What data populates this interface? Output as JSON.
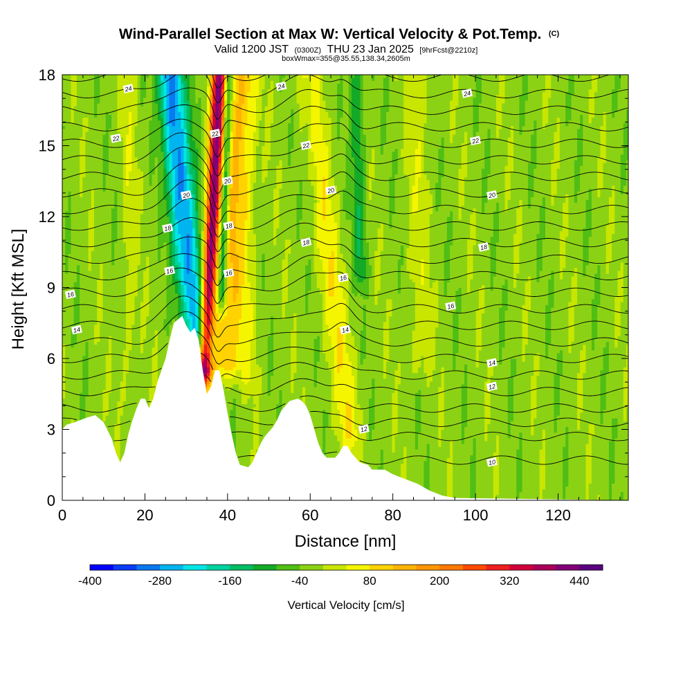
{
  "title": {
    "main": "Wind-Parallel Section at Max W: Vertical Velocity & Pot.Temp.",
    "mark": "(C)",
    "sub_valid": "Valid 1200 JST",
    "sub_utc": "(0300Z)",
    "sub_date": "THU 23 Jan 2025",
    "sub_fcst": "[9hrFcst@2210z]",
    "line3": "boxWmax=355@35.55,138.34,2605m"
  },
  "chart_data": {
    "type": "heatmap",
    "xlabel": "Distance [nm]",
    "ylabel": "Height [Kft MSL]",
    "xlim": [
      0,
      137
    ],
    "ylim": [
      0,
      18
    ],
    "x_ticks": [
      0,
      20,
      40,
      60,
      80,
      100,
      120
    ],
    "y_ticks": [
      0,
      3,
      6,
      9,
      12,
      15,
      18
    ],
    "colorbar": {
      "title": "Vertical Velocity [cm/s]",
      "range": [
        -400,
        480
      ],
      "step": 40,
      "tick_values": [
        -400,
        -280,
        -160,
        -40,
        80,
        200,
        320,
        440
      ],
      "colors": [
        "#0000ff",
        "#0a3cf5",
        "#0a78f0",
        "#00b4f0",
        "#00e6e6",
        "#00d2a0",
        "#00be64",
        "#14aa28",
        "#50be14",
        "#8cd214",
        "#c8e600",
        "#f5f500",
        "#ffd200",
        "#ffb400",
        "#ff9600",
        "#ff7800",
        "#ff4b00",
        "#f01e1e",
        "#d2003c",
        "#aa005a",
        "#820078",
        "#5a0082"
      ]
    },
    "terrain_kft": [
      [
        0,
        3.0
      ],
      [
        1,
        3.2
      ],
      [
        3,
        3.3
      ],
      [
        6,
        3.5
      ],
      [
        8,
        3.6
      ],
      [
        10,
        3.3
      ],
      [
        12,
        2.6
      ],
      [
        13,
        2.0
      ],
      [
        14,
        1.6
      ],
      [
        15,
        2.0
      ],
      [
        16,
        2.8
      ],
      [
        17,
        3.4
      ],
      [
        18,
        3.9
      ],
      [
        19,
        4.3
      ],
      [
        20,
        4.3
      ],
      [
        21,
        3.9
      ],
      [
        22,
        4.3
      ],
      [
        23,
        5.0
      ],
      [
        24,
        5.5
      ],
      [
        25,
        6.0
      ],
      [
        26,
        6.8
      ],
      [
        27,
        7.5
      ],
      [
        29,
        7.8
      ],
      [
        30,
        7.4
      ],
      [
        31,
        7.1
      ],
      [
        32,
        7.3
      ],
      [
        33,
        6.8
      ],
      [
        34,
        5.5
      ],
      [
        35,
        4.5
      ],
      [
        36,
        4.8
      ],
      [
        37,
        5.5
      ],
      [
        38,
        5.5
      ],
      [
        39,
        4.7
      ],
      [
        40,
        3.7
      ],
      [
        41,
        2.8
      ],
      [
        42,
        2.0
      ],
      [
        43,
        1.5
      ],
      [
        45,
        1.4
      ],
      [
        46,
        1.6
      ],
      [
        47,
        2.0
      ],
      [
        48,
        2.4
      ],
      [
        49,
        2.7
      ],
      [
        50,
        2.9
      ],
      [
        51,
        3.1
      ],
      [
        52,
        3.4
      ],
      [
        53,
        3.8
      ],
      [
        55,
        4.2
      ],
      [
        57,
        4.3
      ],
      [
        58,
        4.2
      ],
      [
        59,
        4.0
      ],
      [
        60,
        3.6
      ],
      [
        61,
        3.0
      ],
      [
        62,
        2.4
      ],
      [
        63,
        2.0
      ],
      [
        64,
        1.8
      ],
      [
        66,
        1.8
      ],
      [
        67,
        2.0
      ],
      [
        68,
        2.3
      ],
      [
        69,
        2.3
      ],
      [
        70,
        2.0
      ],
      [
        71,
        1.8
      ],
      [
        72,
        1.6
      ],
      [
        74,
        1.5
      ],
      [
        75,
        1.3
      ],
      [
        78,
        1.3
      ],
      [
        80,
        1.1
      ],
      [
        83,
        0.9
      ],
      [
        86,
        0.7
      ],
      [
        89,
        0.4
      ],
      [
        92,
        0.2
      ],
      [
        95,
        0.1
      ],
      [
        137,
        0.0
      ]
    ],
    "updrafts": [
      {
        "x_base": 34.2,
        "x_top": 38.0,
        "z_base": 4.7,
        "z_top": 18,
        "w": 420,
        "width": 1.7
      },
      {
        "x_base": 39.2,
        "x_top": 42.7,
        "z_base": 5.0,
        "z_top": 18,
        "w": 140,
        "width": 3.6
      },
      {
        "x_base": 45.0,
        "x_top": 45.0,
        "z_base": 4.5,
        "z_top": 18,
        "w": 40,
        "width": 2.5
      },
      {
        "x_base": 70.0,
        "x_top": 59.5,
        "z_base": 2.0,
        "z_top": 18,
        "w": 80,
        "width": 3.2
      },
      {
        "x_base": 16.5,
        "x_top": 16.0,
        "z_base": 3.5,
        "z_top": 18,
        "w": 40,
        "width": 2.0
      },
      {
        "x_base": 86.0,
        "x_top": 86.0,
        "z_base": 5.0,
        "z_top": 18,
        "w": 40,
        "width": 3.0
      }
    ],
    "downdrafts": [
      {
        "x_base": 33.0,
        "x_top": 26.5,
        "z_base": 6.0,
        "z_top": 18,
        "w": -270,
        "width": 3.0
      },
      {
        "x_base": 38.6,
        "x_top": 40.2,
        "z_base": 8.0,
        "z_top": 18,
        "w": -200,
        "width": 1.1
      },
      {
        "x_base": 72.5,
        "x_top": 71.0,
        "z_base": 9.0,
        "z_top": 18,
        "w": -90,
        "width": 1.7
      },
      {
        "x_base": 28.5,
        "x_top": 24.5,
        "z_base": 9.0,
        "z_top": 18,
        "w": -60,
        "width": 1.6
      },
      {
        "x_base": 61.0,
        "x_top": 59.0,
        "z_base": 12.0,
        "z_top": 18,
        "w": -40,
        "width": 1.5
      }
    ],
    "contours_kft": [
      1.7,
      2.7,
      3.3,
      3.9,
      4.6,
      5.3,
      6.0,
      6.7,
      7.4,
      8.1,
      8.8,
      9.5,
      10.2,
      10.9,
      11.6,
      12.3,
      13.0,
      13.7,
      14.4,
      15.1,
      15.8,
      16.5,
      17.2,
      17.9
    ],
    "contour_labels": [
      {
        "text": "24",
        "x": 16.0,
        "y": 17.4
      },
      {
        "text": "22",
        "x": 13.0,
        "y": 15.3
      },
      {
        "text": "20",
        "x": 30.0,
        "y": 12.9
      },
      {
        "text": "18",
        "x": 25.5,
        "y": 11.5
      },
      {
        "text": "16",
        "x": 26.0,
        "y": 9.7
      },
      {
        "text": "16",
        "x": 2.0,
        "y": 8.7
      },
      {
        "text": "14",
        "x": 3.5,
        "y": 7.2
      },
      {
        "text": "22",
        "x": 37.0,
        "y": 15.5
      },
      {
        "text": "20",
        "x": 40.0,
        "y": 13.5
      },
      {
        "text": "18",
        "x": 40.3,
        "y": 11.6
      },
      {
        "text": "16",
        "x": 40.3,
        "y": 9.6
      },
      {
        "text": "24",
        "x": 53.0,
        "y": 17.5
      },
      {
        "text": "22",
        "x": 59.0,
        "y": 15.0
      },
      {
        "text": "20",
        "x": 65.0,
        "y": 13.1
      },
      {
        "text": "18",
        "x": 59.0,
        "y": 10.9
      },
      {
        "text": "16",
        "x": 68.0,
        "y": 9.4
      },
      {
        "text": "14",
        "x": 68.5,
        "y": 7.2
      },
      {
        "text": "12",
        "x": 73.0,
        "y": 3.0
      },
      {
        "text": "24",
        "x": 98.0,
        "y": 17.2
      },
      {
        "text": "22",
        "x": 100.0,
        "y": 15.2
      },
      {
        "text": "20",
        "x": 104.0,
        "y": 12.9
      },
      {
        "text": "18",
        "x": 102.0,
        "y": 10.7
      },
      {
        "text": "16",
        "x": 94.0,
        "y": 8.2
      },
      {
        "text": "14",
        "x": 104.0,
        "y": 5.8
      },
      {
        "text": "12",
        "x": 104.0,
        "y": 4.8
      },
      {
        "text": "10",
        "x": 104.0,
        "y": 1.6
      }
    ]
  }
}
